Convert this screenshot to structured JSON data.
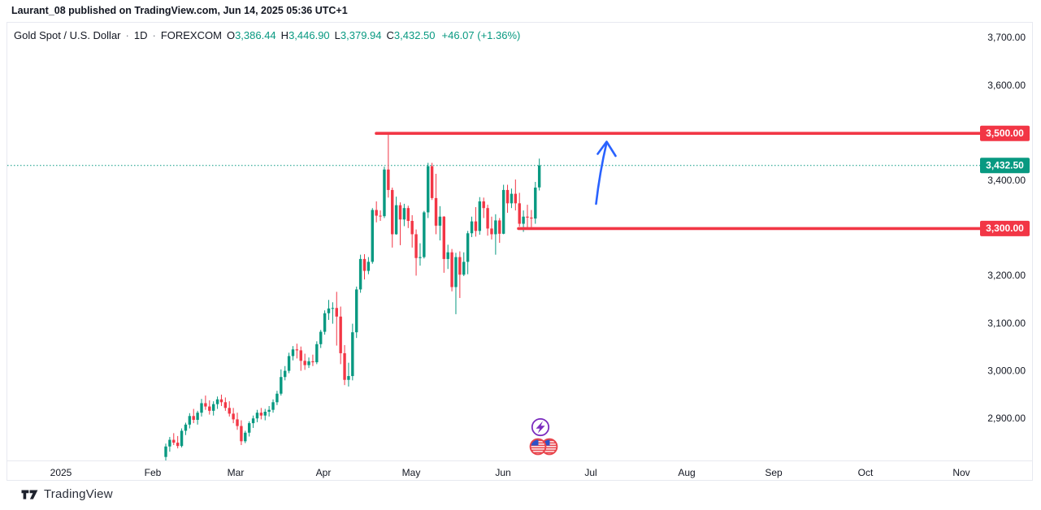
{
  "attribution": "Laurant_08 published on TradingView.com, Jun 14, 2025 05:36 UTC+1",
  "logo": {
    "text": "TradingView"
  },
  "header": {
    "symbol": "Gold Spot / U.S. Dollar",
    "sep": "·",
    "interval": "1D",
    "exchange": "FOREXCOM",
    "open_label": "O",
    "open": "3,386.44",
    "high_label": "H",
    "high": "3,446.90",
    "low_label": "L",
    "low": "3,379.94",
    "close_label": "C",
    "close": "3,432.50",
    "change": "+46.07 (+1.36%)"
  },
  "colors": {
    "up": "#089981",
    "down": "#F23645",
    "level_line": "#F23645",
    "last_price": "#089981",
    "axis_text": "#131722",
    "axis_border": "#e7e9f0",
    "arrow": "#2962FF",
    "event_purple": "#7b2cbf",
    "flag_ring": "#e8434a",
    "flag_blue": "#2c52c9",
    "badge_text": "#ffffff"
  },
  "chart_data": {
    "type": "candlestick",
    "title": "Gold Spot / U.S. Dollar, 1D, FOREXCOM",
    "note": "Daily candles from early Feb 2025 through Jun 13 2025; time axis extends to Nov 2025; values in USD, estimated from chart",
    "ylim": [
      2810,
      3730
    ],
    "grid": "off",
    "last_price": {
      "value": 3432.5,
      "label": "3,432.50"
    },
    "levels": [
      {
        "price": 3500.0,
        "label": "3,500.00"
      },
      {
        "price": 3300.0,
        "label": "3,300.00"
      }
    ],
    "y_axis_ticks": [
      {
        "price": 3700,
        "label": "3,700.00"
      },
      {
        "price": 3600,
        "label": "3,600.00"
      },
      {
        "price": 3400,
        "label": "3,400.00"
      },
      {
        "price": 3200,
        "label": "3,200.00"
      },
      {
        "price": 3100,
        "label": "3,100.00"
      },
      {
        "price": 3000,
        "label": "3,000.00"
      },
      {
        "price": 2900,
        "label": "2,900.00"
      }
    ],
    "x_axis_labels": [
      "2025",
      "Feb",
      "Mar",
      "Apr",
      "May",
      "Jun",
      "Jul",
      "Aug",
      "Sep",
      "Oct",
      "Nov"
    ],
    "annotations": {
      "arrow": {
        "shape": "up-arrow",
        "color": "#2962FF",
        "meaning": "projected move up toward 3,500 resistance"
      },
      "events": [
        "lightning-economic-event",
        "us-flag-economic-events"
      ]
    },
    "candles": [
      [
        2820,
        2848,
        2812,
        2842
      ],
      [
        2842,
        2862,
        2831,
        2856
      ],
      [
        2856,
        2870,
        2845,
        2850
      ],
      [
        2850,
        2864,
        2838,
        2843
      ],
      [
        2843,
        2880,
        2840,
        2875
      ],
      [
        2875,
        2892,
        2866,
        2888
      ],
      [
        2888,
        2912,
        2880,
        2906
      ],
      [
        2906,
        2921,
        2891,
        2898
      ],
      [
        2898,
        2917,
        2888,
        2913
      ],
      [
        2913,
        2942,
        2905,
        2933
      ],
      [
        2933,
        2949,
        2919,
        2926
      ],
      [
        2926,
        2939,
        2909,
        2917
      ],
      [
        2917,
        2937,
        2907,
        2931
      ],
      [
        2931,
        2947,
        2921,
        2941
      ],
      [
        2941,
        2951,
        2927,
        2935
      ],
      [
        2935,
        2945,
        2917,
        2923
      ],
      [
        2923,
        2937,
        2905,
        2911
      ],
      [
        2911,
        2923,
        2891,
        2899
      ],
      [
        2899,
        2913,
        2877,
        2885
      ],
      [
        2885,
        2897,
        2845,
        2853
      ],
      [
        2853,
        2875,
        2849,
        2871
      ],
      [
        2871,
        2895,
        2863,
        2891
      ],
      [
        2891,
        2907,
        2881,
        2901
      ],
      [
        2901,
        2919,
        2893,
        2913
      ],
      [
        2913,
        2923,
        2899,
        2907
      ],
      [
        2907,
        2921,
        2897,
        2915
      ],
      [
        2915,
        2927,
        2905,
        2919
      ],
      [
        2919,
        2941,
        2913,
        2935
      ],
      [
        2935,
        2959,
        2929,
        2953
      ],
      [
        2953,
        3004,
        2949,
        2988
      ],
      [
        2988,
        3011,
        2981,
        3001
      ],
      [
        3001,
        3039,
        2996,
        3032
      ],
      [
        3032,
        3053,
        3023,
        3046
      ],
      [
        3046,
        3058,
        3027,
        3044
      ],
      [
        3044,
        3052,
        3001,
        3022
      ],
      [
        3022,
        3037,
        3003,
        3013
      ],
      [
        3013,
        3029,
        3007,
        3021
      ],
      [
        3021,
        3035,
        3011,
        3019
      ],
      [
        3019,
        3063,
        3015,
        3057
      ],
      [
        3057,
        3087,
        3049,
        3083
      ],
      [
        3083,
        3128,
        3077,
        3122
      ],
      [
        3122,
        3150,
        3108,
        3132
      ],
      [
        3132,
        3145,
        3100,
        3133
      ],
      [
        3133,
        3167,
        3054,
        3115
      ],
      [
        3115,
        3136,
        3015,
        3038
      ],
      [
        3038,
        3055,
        2971,
        2982
      ],
      [
        2982,
        3018,
        2968,
        2990
      ],
      [
        2990,
        3100,
        2981,
        3082
      ],
      [
        3082,
        3178,
        3070,
        3172
      ],
      [
        3172,
        3245,
        3165,
        3236
      ],
      [
        3236,
        3246,
        3193,
        3211
      ],
      [
        3211,
        3240,
        3204,
        3230
      ],
      [
        3230,
        3343,
        3226,
        3339
      ],
      [
        3339,
        3357,
        3313,
        3327
      ],
      [
        3327,
        3338,
        3316,
        3326
      ],
      [
        3326,
        3430,
        3322,
        3424
      ],
      [
        3424,
        3500,
        3365,
        3381
      ],
      [
        3381,
        3386,
        3260,
        3288
      ],
      [
        3288,
        3367,
        3287,
        3349
      ],
      [
        3349,
        3355,
        3265,
        3319
      ],
      [
        3319,
        3352,
        3305,
        3343
      ],
      [
        3343,
        3348,
        3301,
        3316
      ],
      [
        3316,
        3328,
        3260,
        3288
      ],
      [
        3288,
        3298,
        3201,
        3238
      ],
      [
        3238,
        3269,
        3222,
        3240
      ],
      [
        3240,
        3337,
        3237,
        3334
      ],
      [
        3334,
        3438,
        3322,
        3431
      ],
      [
        3431,
        3438,
        3360,
        3364
      ],
      [
        3364,
        3415,
        3288,
        3306
      ],
      [
        3306,
        3347,
        3275,
        3325
      ],
      [
        3325,
        3326,
        3207,
        3236
      ],
      [
        3236,
        3266,
        3215,
        3250
      ],
      [
        3250,
        3257,
        3168,
        3177
      ],
      [
        3177,
        3249,
        3120,
        3240
      ],
      [
        3240,
        3252,
        3154,
        3203
      ],
      [
        3203,
        3250,
        3200,
        3230
      ],
      [
        3230,
        3295,
        3204,
        3290
      ],
      [
        3290,
        3325,
        3282,
        3315
      ],
      [
        3315,
        3345,
        3283,
        3295
      ],
      [
        3295,
        3366,
        3287,
        3357
      ],
      [
        3357,
        3365,
        3322,
        3343
      ],
      [
        3343,
        3350,
        3285,
        3300
      ],
      [
        3300,
        3325,
        3277,
        3288
      ],
      [
        3288,
        3330,
        3245,
        3317
      ],
      [
        3317,
        3322,
        3270,
        3289
      ],
      [
        3289,
        3392,
        3288,
        3381
      ],
      [
        3381,
        3392,
        3333,
        3353
      ],
      [
        3353,
        3384,
        3343,
        3373
      ],
      [
        3373,
        3403,
        3338,
        3353
      ],
      [
        3353,
        3375,
        3304,
        3310
      ],
      [
        3310,
        3338,
        3293,
        3325
      ],
      [
        3325,
        3350,
        3301,
        3323
      ],
      [
        3323,
        3339,
        3303,
        3321
      ],
      [
        3321,
        3398,
        3310,
        3386
      ],
      [
        3386.44,
        3446.9,
        3379.94,
        3432.5
      ]
    ]
  }
}
